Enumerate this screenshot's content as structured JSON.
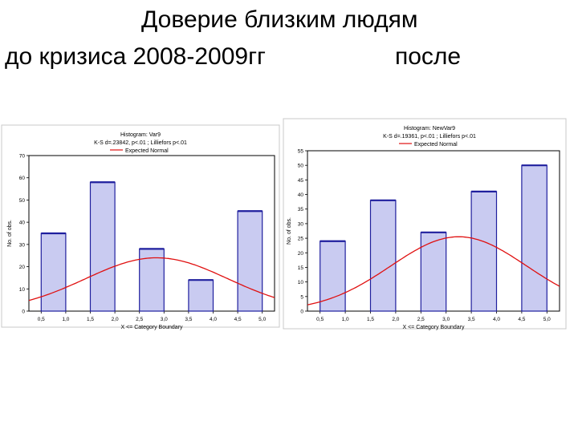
{
  "slide": {
    "title": "Доверие близким людям",
    "label_before": "до кризиса 2008-2009гг",
    "label_after": "после"
  },
  "chart_data": [
    {
      "type": "bar",
      "panel": "left",
      "title": "Histogram: Var9",
      "subtitle": "K-S d=.23842, p<.01 ; Lilliefors p<.01",
      "legend": "Expected Normal",
      "xlabel": "X <= Category Boundary",
      "ylabel": "No. of obs.",
      "x_ticks": [
        "0,5",
        "1,0",
        "1,5",
        "2,0",
        "2,5",
        "3,0",
        "3,5",
        "4,0",
        "4,5",
        "5,0"
      ],
      "y_ticks": [
        "0",
        "10",
        "20",
        "30",
        "40",
        "50",
        "60",
        "70"
      ],
      "ylim": [
        0,
        70
      ],
      "bars": [
        {
          "from": 0.5,
          "to": 1.0,
          "value": 35
        },
        {
          "from": 1.5,
          "to": 2.0,
          "value": 58
        },
        {
          "from": 2.5,
          "to": 3.0,
          "value": 28
        },
        {
          "from": 3.5,
          "to": 4.0,
          "value": 14
        },
        {
          "from": 4.5,
          "to": 5.0,
          "value": 45
        }
      ],
      "normal_curve": {
        "mean": 2.85,
        "sd": 1.45,
        "peak": 24
      }
    },
    {
      "type": "bar",
      "panel": "right",
      "title": "Histogram: NewVar9",
      "subtitle": "K-S d=.19361, p<.01 ; Lilliefors p<.01",
      "legend": "Expected Normal",
      "xlabel": "X <= Category Boundary",
      "ylabel": "No. of obs.",
      "x_ticks": [
        "0,5",
        "1,0",
        "1,5",
        "2,0",
        "2,5",
        "3,0",
        "3,5",
        "4,0",
        "4,5",
        "5,0"
      ],
      "y_ticks": [
        "0",
        "5",
        "10",
        "15",
        "20",
        "25",
        "30",
        "35",
        "40",
        "45",
        "50",
        "55"
      ],
      "ylim": [
        0,
        55
      ],
      "bars": [
        {
          "from": 0.5,
          "to": 1.0,
          "value": 24
        },
        {
          "from": 1.5,
          "to": 2.0,
          "value": 38
        },
        {
          "from": 2.5,
          "to": 3.0,
          "value": 27
        },
        {
          "from": 3.5,
          "to": 4.0,
          "value": 41
        },
        {
          "from": 4.5,
          "to": 5.0,
          "value": 50
        }
      ],
      "normal_curve": {
        "mean": 3.25,
        "sd": 1.35,
        "peak": 25.5
      }
    }
  ]
}
